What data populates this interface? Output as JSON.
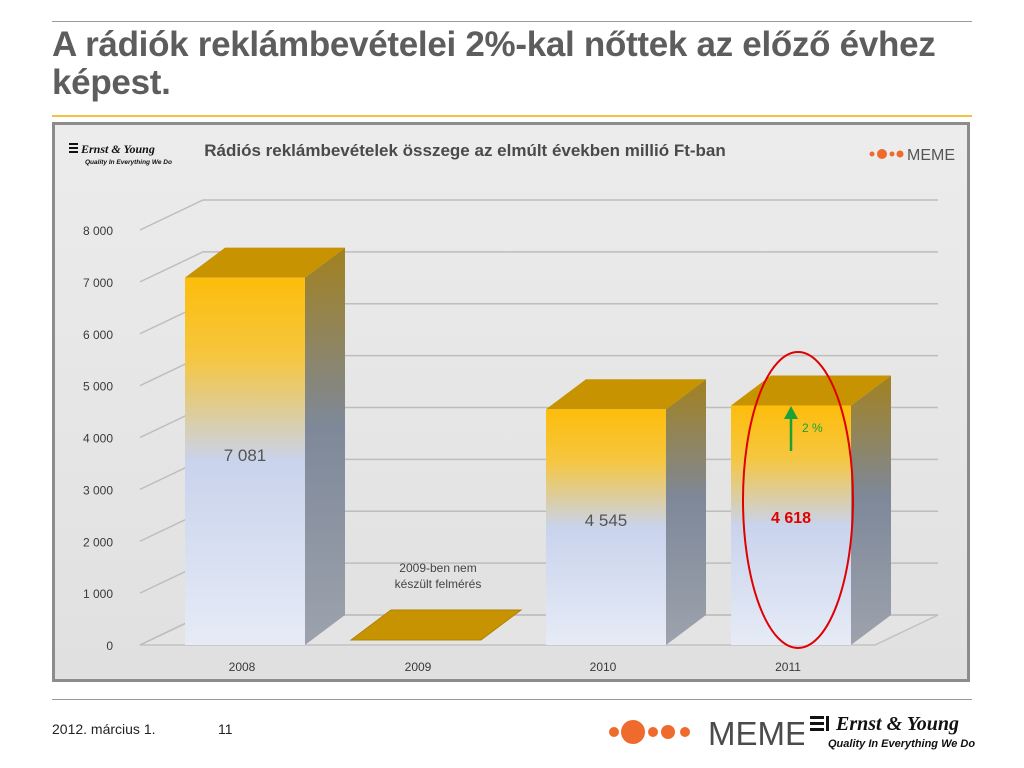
{
  "slide": {
    "title": "A rádiók reklámbevételei 2%-kal nőttek az előző évhez képest.",
    "footer_date": "2012. március 1.",
    "footer_page": "11",
    "meme_logo": "MEME",
    "ey_brand": "Ernst & Young",
    "ey_tagline": "Quality In Everything We Do"
  },
  "colors": {
    "title": "#5d5d5d",
    "accent_rule": "#f5c043",
    "bar_top": "#c79300",
    "highlight": "#e00000",
    "arrow": "#1aa13a",
    "meme_orange": "#ef6a2d"
  },
  "chart_data": {
    "type": "bar",
    "title": "Rádiós reklámbevételek összege az elmúlt években millió Ft-ban",
    "categories": [
      "2008",
      "2009",
      "2010",
      "2011"
    ],
    "values": [
      7081,
      null,
      4545,
      4618
    ],
    "value_labels": [
      "7 081",
      "",
      "4 545",
      "4 618"
    ],
    "ylim": [
      0,
      8000
    ],
    "yticks": [
      0,
      1000,
      2000,
      3000,
      4000,
      5000,
      6000,
      7000,
      8000
    ],
    "ytick_labels": [
      "0",
      "1 000",
      "2 000",
      "3 000",
      "4 000",
      "5 000",
      "6 000",
      "7 000",
      "8 000"
    ],
    "grid": true,
    "annotations": {
      "no_survey": "2009-ben nem\nkészült felmérés",
      "growth": "2 %",
      "highlighted_category": "2011"
    },
    "logos": {
      "ey_brand": "Ernst & Young",
      "ey_tagline": "Quality In Everything We Do",
      "meme": "MEME"
    }
  }
}
